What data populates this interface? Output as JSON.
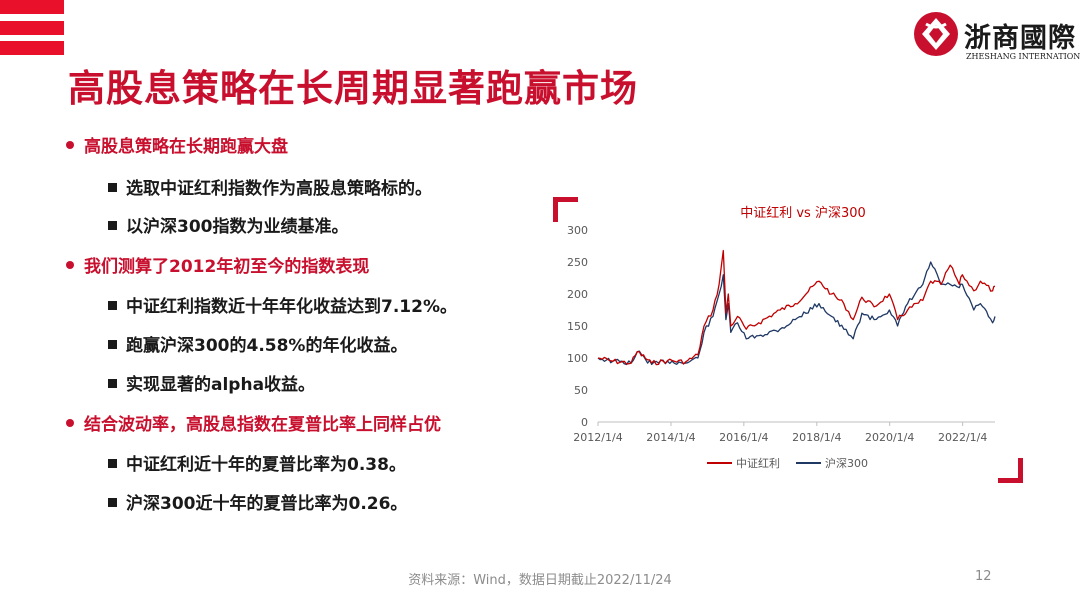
{
  "logo": {
    "name_cn": "浙商國際",
    "name_en": "ZHESHANG INTERNATIONAL"
  },
  "title": "高股息策略在长周期显著跑赢市场",
  "bullets": [
    {
      "level": 1,
      "text": "高股息策略在长期跑赢大盘"
    },
    {
      "level": 2,
      "text": "选取中证红利指数作为高股息策略标的。"
    },
    {
      "level": 2,
      "text": "以沪深300指数为业绩基准。"
    },
    {
      "level": 1,
      "text": "我们测算了2012年初至今的指数表现"
    },
    {
      "level": 2,
      "text": "中证红利指数近十年年化收益达到7.12%。"
    },
    {
      "level": 2,
      "text": "跑赢沪深300的4.58%的年化收益。"
    },
    {
      "level": 2,
      "text": "实现显著的alpha收益。"
    },
    {
      "level": 1,
      "text": "结合波动率，高股息指数在夏普比率上同样占优"
    },
    {
      "level": 2,
      "text": "中证红利近十年的夏普比率为0.38。"
    },
    {
      "level": 2,
      "text": "沪深300近十年的夏普比率为0.26。"
    }
  ],
  "chart_data": {
    "type": "line",
    "title": "中证红利 vs 沪深300",
    "x_ticks": [
      "2012/1/4",
      "2014/1/4",
      "2016/1/4",
      "2018/1/4",
      "2020/1/4",
      "2022/1/4"
    ],
    "x_range": [
      "2012/1/4",
      "2022/11/24"
    ],
    "y_ticks": [
      0,
      50,
      100,
      150,
      200,
      250,
      300
    ],
    "ylim": [
      0,
      300
    ],
    "grid": false,
    "legend_position": "bottom",
    "series": [
      {
        "name": "中证红利",
        "color": "#c00000",
        "x": [
          "2012/1/4",
          "2012/6/1",
          "2012/12/1",
          "2013/2/1",
          "2013/6/25",
          "2013/12/1",
          "2014/6/1",
          "2014/10/1",
          "2014/12/1",
          "2015/3/1",
          "2015/5/1",
          "2015/6/12",
          "2015/7/8",
          "2015/8/1",
          "2015/8/26",
          "2015/11/1",
          "2016/1/28",
          "2016/6/1",
          "2017/1/1",
          "2017/6/1",
          "2018/1/26",
          "2018/6/1",
          "2018/10/1",
          "2019/1/4",
          "2019/4/1",
          "2019/8/1",
          "2020/1/1",
          "2020/3/23",
          "2020/7/1",
          "2020/12/1",
          "2021/2/18",
          "2021/6/1",
          "2021/9/1",
          "2021/12/1",
          "2022/1/1",
          "2022/4/26",
          "2022/7/1",
          "2022/10/31",
          "2022/11/24"
        ],
        "values": [
          100,
          95,
          92,
          110,
          92,
          96,
          94,
          105,
          150,
          175,
          215,
          268,
          170,
          200,
          150,
          165,
          145,
          155,
          175,
          185,
          220,
          200,
          185,
          160,
          195,
          180,
          200,
          160,
          175,
          190,
          220,
          215,
          245,
          215,
          230,
          205,
          220,
          205,
          212
        ]
      },
      {
        "name": "沪深300",
        "color": "#1f3864",
        "x": [
          "2012/1/4",
          "2012/6/1",
          "2012/12/1",
          "2013/2/1",
          "2013/6/25",
          "2013/12/1",
          "2014/6/1",
          "2014/10/1",
          "2014/12/1",
          "2015/3/1",
          "2015/5/1",
          "2015/6/12",
          "2015/7/8",
          "2015/8/1",
          "2015/8/26",
          "2015/11/1",
          "2016/1/28",
          "2016/6/1",
          "2017/1/1",
          "2017/6/1",
          "2018/1/26",
          "2018/6/1",
          "2018/10/1",
          "2019/1/4",
          "2019/4/1",
          "2019/8/1",
          "2020/1/1",
          "2020/3/23",
          "2020/7/1",
          "2020/12/1",
          "2021/2/18",
          "2021/6/1",
          "2021/9/1",
          "2021/12/1",
          "2022/1/1",
          "2022/4/26",
          "2022/7/1",
          "2022/10/31",
          "2022/11/24"
        ],
        "values": [
          100,
          95,
          92,
          110,
          90,
          95,
          92,
          100,
          140,
          165,
          200,
          230,
          160,
          185,
          140,
          155,
          130,
          135,
          145,
          160,
          185,
          165,
          145,
          130,
          170,
          160,
          175,
          150,
          185,
          215,
          250,
          215,
          215,
          210,
          215,
          175,
          185,
          155,
          165
        ]
      }
    ]
  },
  "footer": {
    "source": "资料来源：Wind，数据日期截止2022/11/24",
    "page": "12"
  },
  "colors": {
    "brand_red": "#c8102e",
    "stripe_red": "#e8102a",
    "series_red": "#c00000",
    "series_navy": "#1f3864"
  }
}
